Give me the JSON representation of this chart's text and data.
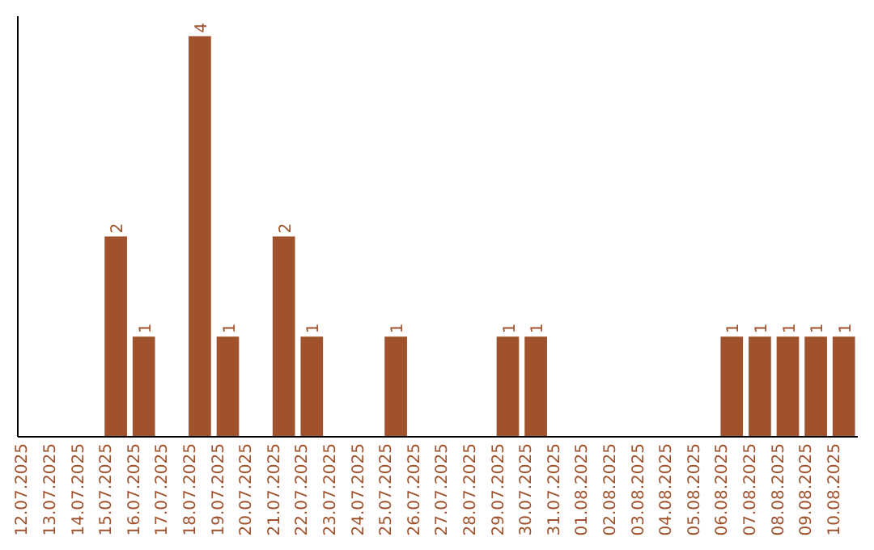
{
  "chart_data": {
    "type": "bar",
    "categories": [
      "12.07.2025",
      "13.07.2025",
      "14.07.2025",
      "15.07.2025",
      "16.07.2025",
      "17.07.2025",
      "18.07.2025",
      "19.07.2025",
      "20.07.2025",
      "21.07.2025",
      "22.07.2025",
      "23.07.2025",
      "24.07.2025",
      "25.07.2025",
      "26.07.2025",
      "27.07.2025",
      "28.07.2025",
      "29.07.2025",
      "30.07.2025",
      "31.07.2025",
      "01.08.2025",
      "02.08.2025",
      "03.08.2025",
      "04.08.2025",
      "05.08.2025",
      "06.08.2025",
      "07.08.2025",
      "08.08.2025",
      "09.08.2025",
      "10.08.2025"
    ],
    "values": [
      0,
      0,
      0,
      2,
      1,
      0,
      4,
      1,
      0,
      2,
      1,
      0,
      0,
      1,
      0,
      0,
      0,
      1,
      1,
      0,
      0,
      0,
      0,
      0,
      0,
      1,
      1,
      1,
      1,
      1
    ],
    "value_labels": [
      null,
      null,
      null,
      "2",
      "1",
      null,
      "4",
      "1",
      null,
      "2",
      "1",
      null,
      null,
      "1",
      null,
      null,
      null,
      "1",
      "1",
      null,
      null,
      null,
      null,
      null,
      null,
      "1",
      "1",
      "1",
      "1",
      "1"
    ],
    "color": "#a0522d",
    "ylim": [
      0,
      4.2
    ],
    "tick_labels": "x"
  }
}
